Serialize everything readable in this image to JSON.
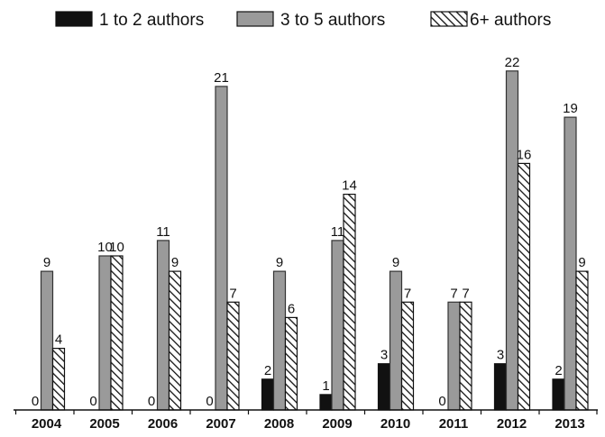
{
  "chart_data": {
    "type": "bar",
    "title": "",
    "xlabel": "",
    "ylabel": "",
    "ylim": [
      0,
      23
    ],
    "grid": false,
    "legend_position": "top",
    "categories": [
      "2004",
      "2005",
      "2006",
      "2007",
      "2008",
      "2009",
      "2010",
      "2011",
      "2012",
      "2013"
    ],
    "series": [
      {
        "name": "1 to 2 authors",
        "fill": "solid-black",
        "color": "#111111",
        "values": [
          0,
          0,
          0,
          0,
          2,
          1,
          3,
          0,
          3,
          2
        ]
      },
      {
        "name": "3 to 5 authors",
        "fill": "solid-gray",
        "color": "#9a9a9a",
        "values": [
          9,
          10,
          11,
          21,
          9,
          11,
          9,
          7,
          22,
          19
        ]
      },
      {
        "name": "6+ authors",
        "fill": "diagonal-hatch",
        "color": "#111111",
        "values": [
          4,
          10,
          9,
          7,
          6,
          14,
          7,
          7,
          16,
          9
        ]
      }
    ]
  }
}
